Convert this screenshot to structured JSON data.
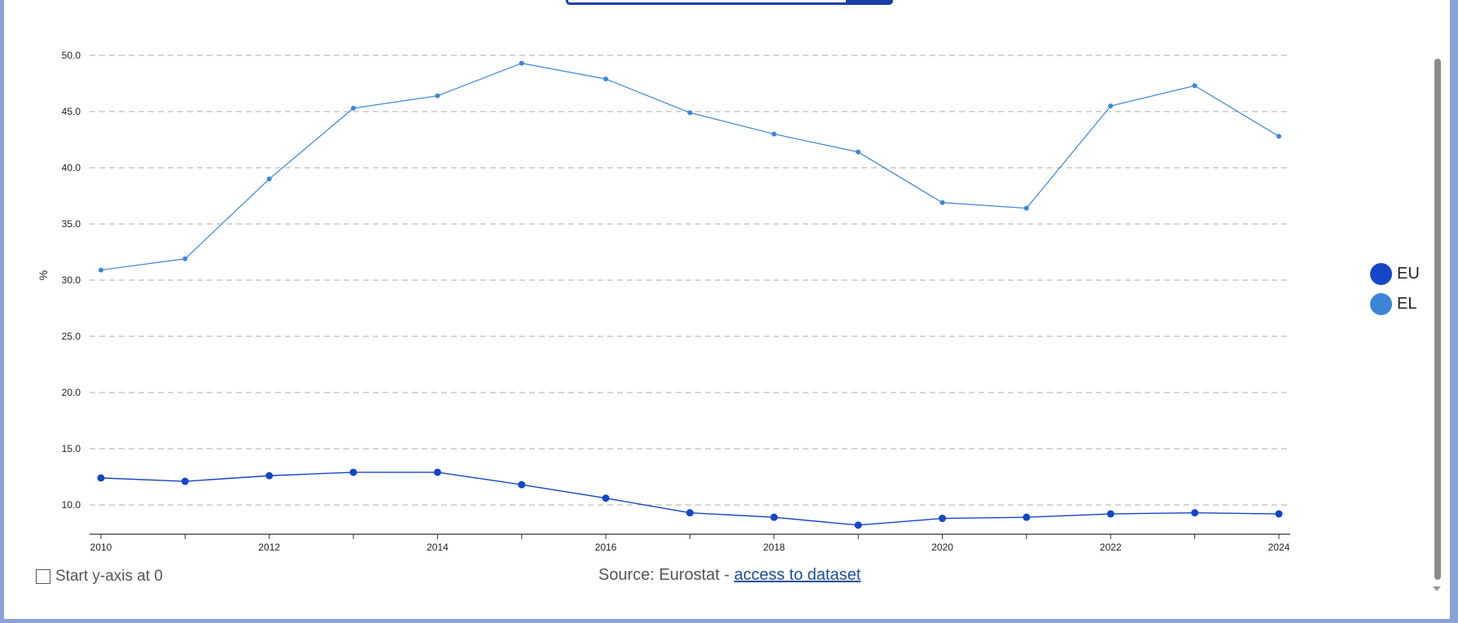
{
  "chart_data": {
    "type": "line",
    "x": [
      2010,
      2011,
      2012,
      2013,
      2014,
      2015,
      2016,
      2017,
      2018,
      2019,
      2020,
      2021,
      2022,
      2023,
      2024
    ],
    "x_tick_labels": [
      "2010",
      "2012",
      "2014",
      "2016",
      "2018",
      "2020",
      "2022",
      "2024"
    ],
    "y_tick_labels": [
      "10.0",
      "15.0",
      "20.0",
      "25.0",
      "30.0",
      "35.0",
      "40.0",
      "45.0",
      "50.0"
    ],
    "ylabel": "%",
    "ylim": [
      7.5,
      50
    ],
    "grid": true,
    "legend_position": "right",
    "series": [
      {
        "name": "EU",
        "color": "#1446c8",
        "values": [
          12.4,
          12.1,
          12.6,
          12.9,
          12.9,
          11.8,
          10.6,
          9.3,
          8.9,
          8.2,
          8.8,
          8.9,
          9.2,
          9.3,
          9.2
        ]
      },
      {
        "name": "EL",
        "color": "#3a86d9",
        "values": [
          30.9,
          31.9,
          39.0,
          45.3,
          46.4,
          49.3,
          47.9,
          44.9,
          43.0,
          41.4,
          36.9,
          36.4,
          45.5,
          47.3,
          42.8
        ]
      }
    ]
  },
  "legend": [
    {
      "label": "EU",
      "color": "#1446c8"
    },
    {
      "label": "EL",
      "color": "#3a86d9"
    }
  ],
  "controls": {
    "start_y_axis_label": "Start y-axis at 0",
    "start_y_axis_checked": false
  },
  "source": {
    "prefix": "Source: Eurostat - ",
    "link_label": "access to dataset"
  }
}
